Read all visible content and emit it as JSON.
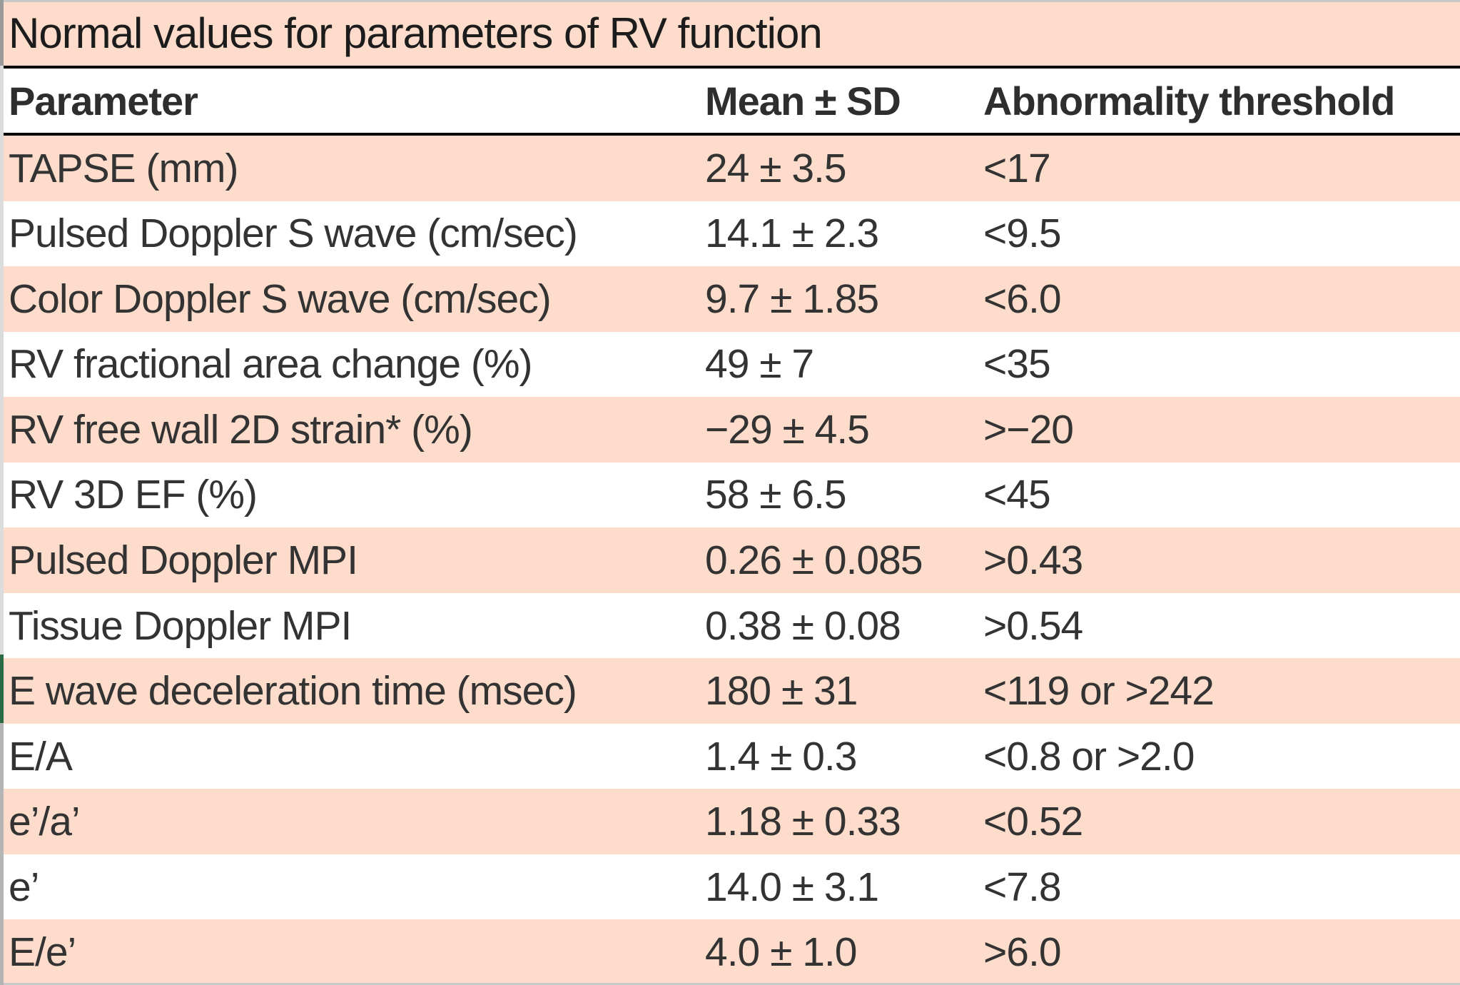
{
  "table": {
    "title": "Normal values for parameters of RV function",
    "columns": {
      "parameter": "Parameter",
      "mean_sd": "Mean ± SD",
      "threshold": "Abnormality threshold"
    },
    "rows": [
      {
        "parameter": "TAPSE (mm)",
        "mean_sd": "24 ± 3.5",
        "threshold": "<17"
      },
      {
        "parameter": "Pulsed Doppler S wave (cm/sec)",
        "mean_sd": "14.1 ± 2.3",
        "threshold": "<9.5"
      },
      {
        "parameter": "Color Doppler S wave (cm/sec)",
        "mean_sd": "9.7 ± 1.85",
        "threshold": "<6.0"
      },
      {
        "parameter": "RV fractional area change (%)",
        "mean_sd": "49 ± 7",
        "threshold": "<35"
      },
      {
        "parameter": "RV free wall 2D strain* (%)",
        "mean_sd": "−29 ± 4.5",
        "threshold": ">−20"
      },
      {
        "parameter": "RV 3D EF (%)",
        "mean_sd": "58 ± 6.5",
        "threshold": "<45"
      },
      {
        "parameter": "Pulsed Doppler MPI",
        "mean_sd": "0.26 ± 0.085",
        "threshold": ">0.43"
      },
      {
        "parameter": "Tissue Doppler MPI",
        "mean_sd": "0.38 ± 0.08",
        "threshold": ">0.54"
      },
      {
        "parameter": "E wave deceleration time (msec)",
        "mean_sd": "180 ± 31",
        "threshold": "<119 or >242"
      },
      {
        "parameter": "E/A",
        "mean_sd": "1.4 ± 0.3",
        "threshold": "<0.8 or >2.0"
      },
      {
        "parameter": "e’/a’",
        "mean_sd": "1.18 ± 0.33",
        "threshold": "<0.52"
      },
      {
        "parameter": "e’",
        "mean_sd": "14.0 ± 3.1",
        "threshold": "<7.8"
      },
      {
        "parameter": "E/e’",
        "mean_sd": "4.0 ± 1.0",
        "threshold": ">6.0"
      }
    ],
    "row_striping": {
      "odd_rows": "peach",
      "even_rows": "white"
    },
    "green_marker_row_index": 8
  },
  "colors": {
    "row_peach": "#fddccb",
    "row_white": "#ffffff",
    "rule_black": "#000000",
    "body_text": "#333333",
    "title_text": "#1c1c1c",
    "edge_light_gray": "#c9c9c9",
    "edge_title_gray": "#9a9a9a",
    "edge_mid_gray": "#dcdcdc",
    "edge_lower_gray": "#b5b5b5",
    "green_marker": "#2a6b45"
  }
}
